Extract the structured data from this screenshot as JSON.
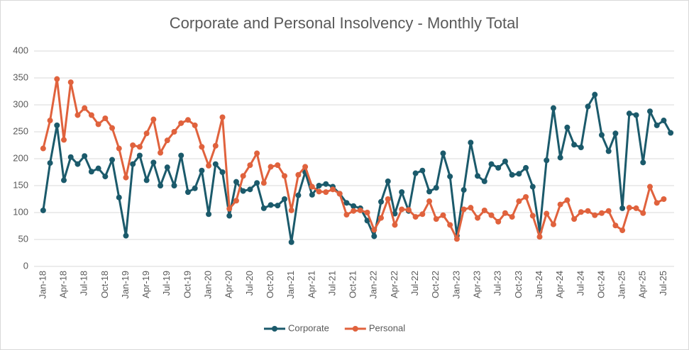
{
  "chart_data": {
    "type": "line",
    "title": "Corporate and Personal Insolvency - Monthly Total",
    "categories": [
      "Jan-18",
      null,
      null,
      "Apr-18",
      null,
      null,
      "Jul-18",
      null,
      null,
      "Oct-18",
      null,
      null,
      "Jan-19",
      null,
      null,
      "Apr-19",
      null,
      null,
      "Jul-19",
      null,
      null,
      "Oct-19",
      null,
      null,
      "Jan-20",
      null,
      null,
      "Apr-20",
      null,
      null,
      "Jul-20",
      null,
      null,
      "Oct-20",
      null,
      null,
      "Jan-21",
      null,
      null,
      "Apr-21",
      null,
      null,
      "Jul-21",
      null,
      null,
      "Oct-21",
      null,
      null,
      "Jan-22",
      null,
      null,
      "Apr-22",
      null,
      null,
      "Jul-22",
      null,
      null,
      "Oct-22",
      null,
      null,
      "Jan-23",
      null,
      null,
      "Apr-23",
      null,
      null,
      "Jul-23",
      null,
      null,
      "Oct-23",
      null,
      null,
      "Jan-24",
      null,
      null,
      "Apr-24",
      null,
      null,
      "Jul-24",
      null,
      null,
      "Oct-24",
      null,
      null,
      "Jan-25",
      null,
      null,
      "Apr-25",
      null,
      null,
      "Jul-25",
      null
    ],
    "series": [
      {
        "name": "Corporate",
        "color": "#1b5a6b",
        "values": [
          104,
          192,
          262,
          160,
          203,
          190,
          205,
          176,
          182,
          167,
          198,
          128,
          57,
          190,
          206,
          160,
          193,
          150,
          184,
          150,
          206,
          138,
          145,
          178,
          97,
          190,
          175,
          94,
          157,
          140,
          143,
          155,
          108,
          114,
          113,
          125,
          45,
          132,
          175,
          133,
          150,
          153,
          148,
          135,
          118,
          112,
          108,
          85,
          56,
          120,
          158,
          98,
          138,
          103,
          173,
          178,
          139,
          146,
          210,
          167,
          57,
          142,
          230,
          168,
          158,
          190,
          183,
          195,
          170,
          172,
          183,
          148,
          65,
          197,
          294,
          202,
          258,
          226,
          221,
          297,
          319,
          244,
          214,
          247,
          108,
          284,
          281,
          193,
          288,
          262,
          271,
          248
        ]
      },
      {
        "name": "Personal",
        "color": "#e0623d",
        "values": [
          219,
          271,
          348,
          235,
          342,
          281,
          294,
          281,
          264,
          275,
          257,
          219,
          165,
          225,
          222,
          247,
          273,
          211,
          234,
          250,
          266,
          272,
          262,
          222,
          187,
          224,
          277,
          107,
          122,
          168,
          188,
          210,
          155,
          185,
          188,
          168,
          104,
          170,
          185,
          148,
          139,
          138,
          143,
          135,
          96,
          103,
          104,
          100,
          68,
          90,
          125,
          77,
          106,
          105,
          92,
          97,
          121,
          88,
          95,
          77,
          51,
          106,
          109,
          90,
          104,
          95,
          83,
          99,
          92,
          121,
          129,
          94,
          55,
          98,
          78,
          115,
          123,
          88,
          101,
          103,
          95,
          99,
          103,
          76,
          67,
          109,
          108,
          99,
          148,
          118,
          125,
          null
        ]
      }
    ],
    "ylim": [
      0,
      400
    ],
    "yticks": [
      0,
      50,
      100,
      150,
      200,
      250,
      300,
      350,
      400
    ],
    "grid": true,
    "legend": "bottom"
  }
}
